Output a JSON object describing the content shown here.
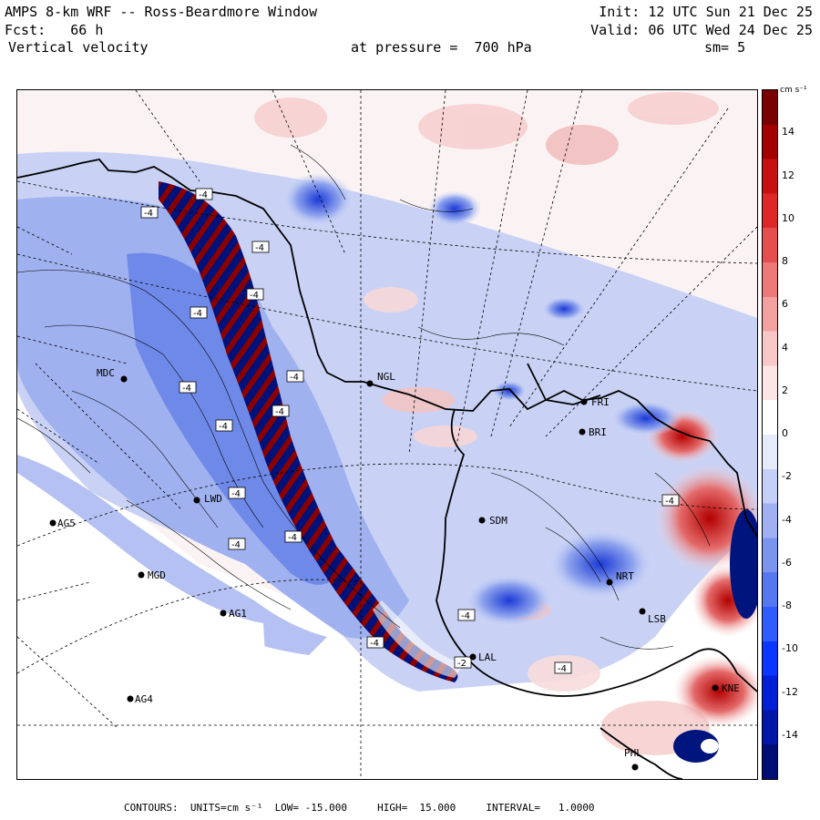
{
  "header": {
    "title": "AMPS 8-km WRF -- Ross-Beardmore Window",
    "forecast": "Fcst:   66 h",
    "field": "Vertical velocity",
    "pressure": "at pressure =  700 hPa",
    "init": "Init: 12 UTC Sun 21 Dec 25",
    "valid": "Valid: 06 UTC Wed 24 Dec 25",
    "smoothing": "sm= 5"
  },
  "colorbar": {
    "units": "cm s⁻¹",
    "ticks": [
      "14",
      "12",
      "10",
      "8",
      "6",
      "4",
      "2",
      "0",
      "-2",
      "-4",
      "-6",
      "-8",
      "-10",
      "-12",
      "-14"
    ],
    "colors": [
      "#000d75",
      "#0016a8",
      "#0020d8",
      "#0a36ff",
      "#2e5cff",
      "#5577f0",
      "#7b94ee",
      "#a0b0f2",
      "#c5cff7",
      "#e6ebfb",
      "#ffffff",
      "#fce5e5",
      "#f8c7c7",
      "#f2a0a0",
      "#ec7878",
      "#e54e4e",
      "#de2828",
      "#c81010",
      "#a40000",
      "#7a0000"
    ]
  },
  "stations": [
    {
      "id": "MDC"
    },
    {
      "id": "NGL"
    },
    {
      "id": "FRI"
    },
    {
      "id": "BRI"
    },
    {
      "id": "LWD"
    },
    {
      "id": "AG5"
    },
    {
      "id": "SDM"
    },
    {
      "id": "MGD"
    },
    {
      "id": "NRT"
    },
    {
      "id": "AG1"
    },
    {
      "id": "LSB"
    },
    {
      "id": "AG4"
    },
    {
      "id": "KNE"
    },
    {
      "id": "PHL"
    },
    {
      "id": "LAL"
    }
  ],
  "contour_labels": [
    "-4",
    "-4",
    "-4",
    "-4",
    "-4",
    "-4",
    "-4",
    "-4",
    "-4",
    "-4",
    "-4",
    "-4",
    "-4",
    "-4",
    "-4",
    "-2",
    "-4"
  ],
  "footer": "CONTOURS:  UNITS=cm s⁻¹  LOW= -15.000     HIGH=  15.000     INTERVAL=   1.0000"
}
